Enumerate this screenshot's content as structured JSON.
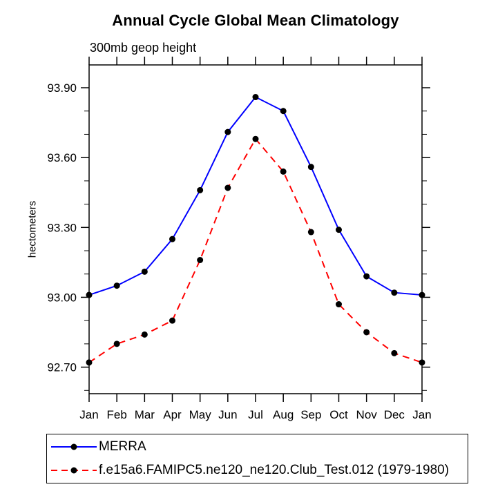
{
  "chart_data": {
    "type": "line",
    "title": "Annual Cycle Global Mean Climatology",
    "left_subtitle": "300mb geop height",
    "ylabel": "hectometers",
    "xlabel": "",
    "categories": [
      "Jan",
      "Feb",
      "Mar",
      "Apr",
      "May",
      "Jun",
      "Jul",
      "Aug",
      "Sep",
      "Oct",
      "Nov",
      "Dec",
      "Jan"
    ],
    "series": [
      {
        "name": "MERRA",
        "color": "#0000ff",
        "line_style": "solid",
        "marker": "filled-circle",
        "marker_color": "#000000",
        "values": [
          93.01,
          93.05,
          93.11,
          93.25,
          93.46,
          93.71,
          93.86,
          93.8,
          93.56,
          93.29,
          93.09,
          93.02,
          93.01
        ]
      },
      {
        "name": "f.e15a6.FAMIPC5.ne120_ne120.Club_Test.012 (1979-1980)",
        "color": "#ff0000",
        "line_style": "dashed",
        "marker": "filled-circle",
        "marker_color": "#000000",
        "values": [
          92.72,
          92.8,
          92.84,
          92.9,
          93.16,
          93.47,
          93.68,
          93.54,
          93.28,
          92.97,
          92.85,
          92.76,
          92.72
        ]
      }
    ],
    "y_ticks": [
      92.7,
      93.0,
      93.3,
      93.6,
      93.9
    ],
    "y_tick_labels": [
      "92.70",
      "93.00",
      "93.30",
      "93.60",
      "93.90"
    ],
    "y_minor_step": 0.1,
    "ylim": [
      92.586,
      93.998
    ],
    "grid": false,
    "legend_position": "bottom-left-box",
    "axis_color": "#000000",
    "background_color": "#ffffff"
  }
}
